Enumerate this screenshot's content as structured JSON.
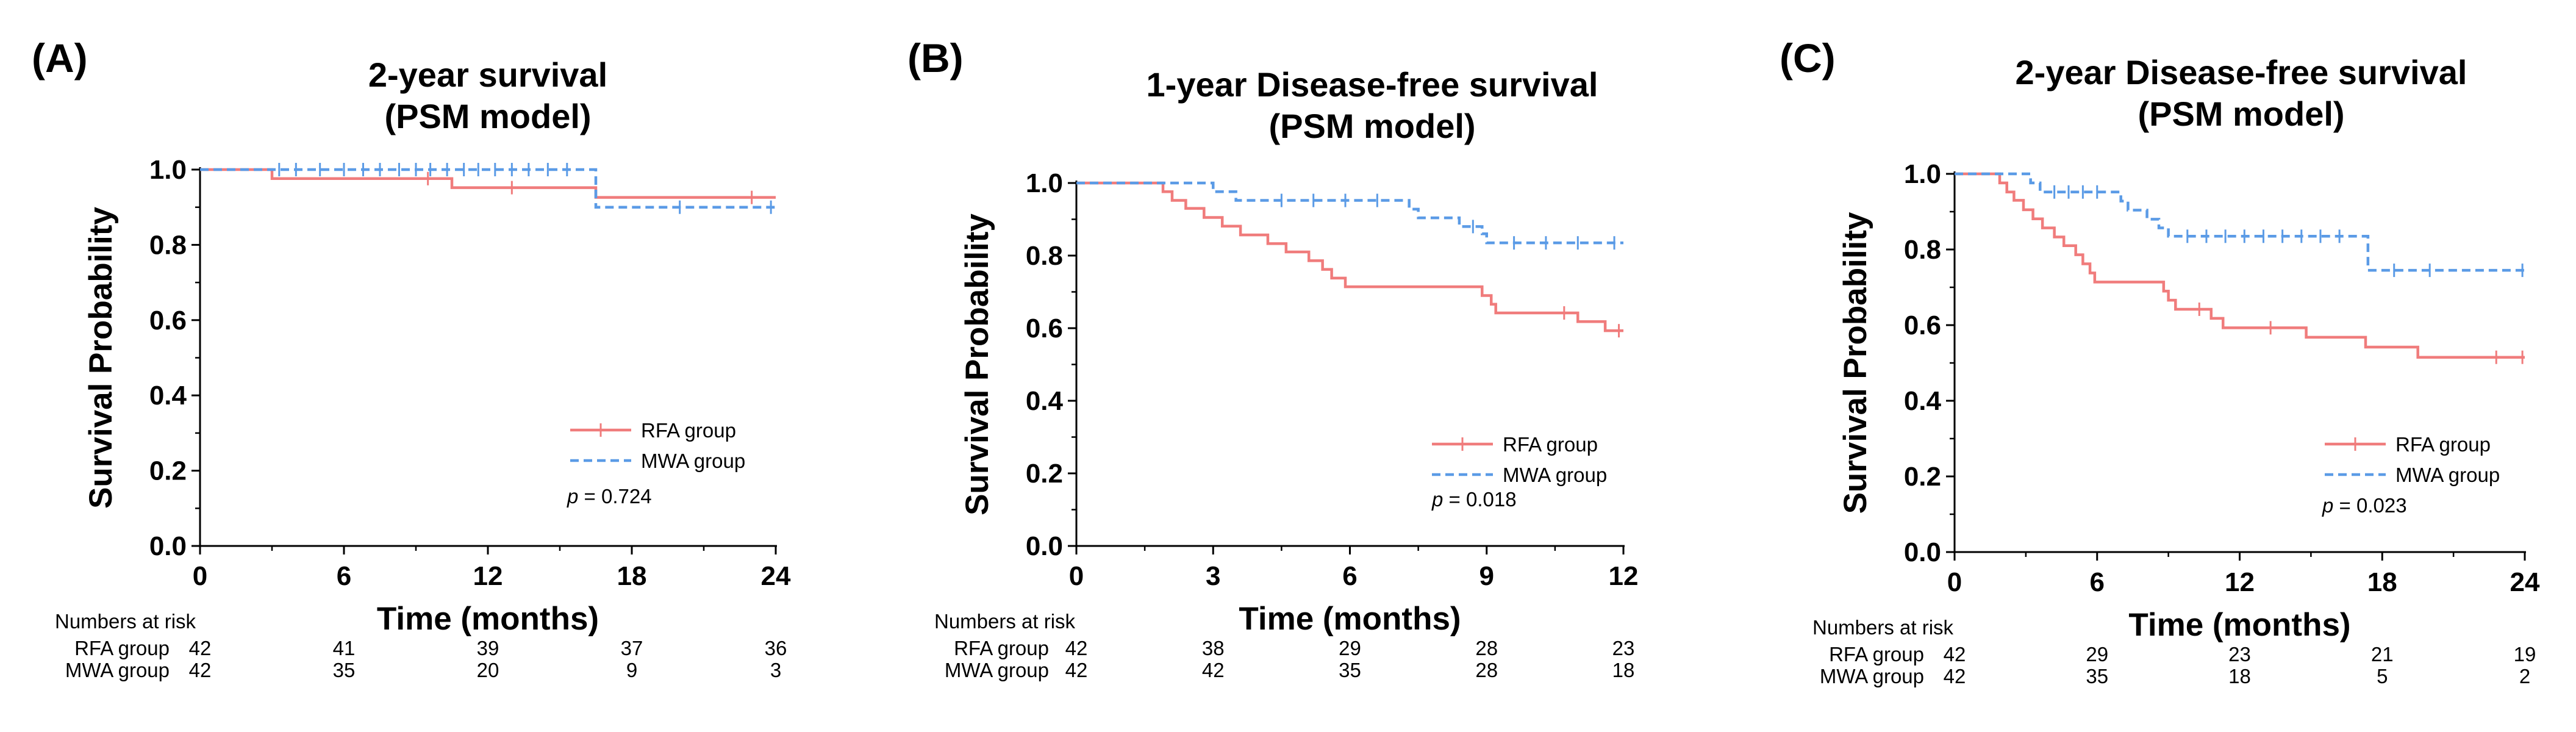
{
  "colors": {
    "rfa": "#F07C7C",
    "mwa": "#5B9BE6"
  },
  "chart_data": [
    {
      "type": "line",
      "panel_label": "(A)",
      "title": [
        "2-year survival",
        "(PSM model)"
      ],
      "xlabel": "Time (months)",
      "ylabel": "Survival Probability",
      "xlim": [
        0,
        24
      ],
      "ylim": [
        0,
        1.0
      ],
      "xticks": [
        0,
        6,
        12,
        18,
        24
      ],
      "xtick_labels": [
        "0",
        "6",
        "12",
        "18",
        "24"
      ],
      "yticks": [
        0,
        0.2,
        0.4,
        0.6,
        0.8,
        1.0
      ],
      "ytick_labels": [
        "0.0",
        "0.2",
        "0.4",
        "0.6",
        "0.8",
        "1.0"
      ],
      "series": [
        {
          "name": "RFA group",
          "style": "solid",
          "steps": [
            [
              0,
              1.0
            ],
            [
              3.0,
              0.976
            ],
            [
              10.5,
              0.952
            ],
            [
              16.5,
              0.926
            ],
            [
              24,
              0.926
            ]
          ],
          "censor": [
            [
              9.5,
              0.976
            ],
            [
              13,
              0.952
            ],
            [
              23,
              0.926
            ]
          ]
        },
        {
          "name": "MWA group",
          "style": "dashed",
          "steps": [
            [
              0,
              1.0
            ],
            [
              3.0,
              1.0
            ],
            [
              16.5,
              0.9
            ],
            [
              24,
              0.9
            ]
          ],
          "censor": [
            [
              3.3,
              1.0
            ],
            [
              4,
              1.0
            ],
            [
              5,
              1.0
            ],
            [
              6,
              1.0
            ],
            [
              6.8,
              1.0
            ],
            [
              7.5,
              1.0
            ],
            [
              8.3,
              1.0
            ],
            [
              9,
              1.0
            ],
            [
              9.6,
              1.0
            ],
            [
              10.3,
              1.0
            ],
            [
              11,
              1.0
            ],
            [
              11.6,
              1.0
            ],
            [
              12.3,
              1.0
            ],
            [
              13,
              1.0
            ],
            [
              13.7,
              1.0
            ],
            [
              14.5,
              1.0
            ],
            [
              15.3,
              1.0
            ],
            [
              20,
              0.9
            ],
            [
              23.8,
              0.9
            ]
          ]
        }
      ],
      "p_label": "p",
      "p_text": " = 0.724",
      "risk_title": "Numbers at risk",
      "risk_rows": [
        {
          "label": "RFA group",
          "values": [
            "42",
            "41",
            "39",
            "37",
            "36"
          ]
        },
        {
          "label": "MWA group",
          "values": [
            "42",
            "35",
            "20",
            "9",
            "3"
          ]
        }
      ]
    },
    {
      "type": "line",
      "panel_label": "(B)",
      "title": [
        "1-year Disease-free survival",
        "(PSM model)"
      ],
      "xlabel": "Time (months)",
      "ylabel": "Survival Probability",
      "xlim": [
        0,
        12
      ],
      "ylim": [
        0,
        1.0
      ],
      "xticks": [
        0,
        3,
        6,
        9,
        12
      ],
      "xtick_labels": [
        "0",
        "3",
        "6",
        "9",
        "12"
      ],
      "yticks": [
        0,
        0.2,
        0.4,
        0.6,
        0.8,
        1.0
      ],
      "ytick_labels": [
        "0.0",
        "0.2",
        "0.4",
        "0.6",
        "0.8",
        "1.0"
      ],
      "series": [
        {
          "name": "RFA group",
          "style": "solid",
          "steps": [
            [
              0,
              1.0
            ],
            [
              1.9,
              0.976
            ],
            [
              2.1,
              0.952
            ],
            [
              2.4,
              0.93
            ],
            [
              2.8,
              0.905
            ],
            [
              3.2,
              0.881
            ],
            [
              3.6,
              0.857
            ],
            [
              4.2,
              0.833
            ],
            [
              4.6,
              0.81
            ],
            [
              5.1,
              0.786
            ],
            [
              5.4,
              0.762
            ],
            [
              5.6,
              0.738
            ],
            [
              5.9,
              0.714
            ],
            [
              8.9,
              0.69
            ],
            [
              9.1,
              0.666
            ],
            [
              9.2,
              0.642
            ],
            [
              11.0,
              0.618
            ],
            [
              11.6,
              0.593
            ],
            [
              12.0,
              0.593
            ]
          ],
          "censor": [
            [
              10.7,
              0.642
            ],
            [
              11.9,
              0.593
            ]
          ]
        },
        {
          "name": "MWA group",
          "style": "dashed",
          "steps": [
            [
              0,
              1.0
            ],
            [
              3.0,
              0.976
            ],
            [
              3.5,
              0.952
            ],
            [
              7.3,
              0.928
            ],
            [
              7.5,
              0.904
            ],
            [
              8.4,
              0.88
            ],
            [
              8.9,
              0.86
            ],
            [
              9.0,
              0.835
            ],
            [
              12.0,
              0.835
            ]
          ],
          "censor": [
            [
              4.5,
              0.952
            ],
            [
              5.2,
              0.952
            ],
            [
              5.9,
              0.952
            ],
            [
              6.6,
              0.952
            ],
            [
              8.7,
              0.88
            ],
            [
              9.6,
              0.835
            ],
            [
              10.3,
              0.835
            ],
            [
              11.0,
              0.835
            ],
            [
              11.8,
              0.835
            ]
          ]
        }
      ],
      "p_label": "p",
      "p_text": " = 0.018",
      "risk_title": "Numbers at risk",
      "risk_rows": [
        {
          "label": "RFA group",
          "values": [
            "42",
            "38",
            "29",
            "28",
            "23"
          ]
        },
        {
          "label": "MWA group",
          "values": [
            "42",
            "42",
            "35",
            "28",
            "18"
          ]
        }
      ]
    },
    {
      "type": "line",
      "panel_label": "(C)",
      "title": [
        "2-year Disease-free survival",
        "(PSM model)"
      ],
      "xlabel": "Time (months)",
      "ylabel": "Survival Probability",
      "xlim": [
        0,
        24
      ],
      "ylim": [
        0,
        1.0
      ],
      "xticks": [
        0,
        6,
        12,
        18,
        24
      ],
      "xtick_labels": [
        "0",
        "6",
        "12",
        "18",
        "24"
      ],
      "yticks": [
        0,
        0.2,
        0.4,
        0.6,
        0.8,
        1.0
      ],
      "ytick_labels": [
        "0.0",
        "0.2",
        "0.4",
        "0.6",
        "0.8",
        "1.0"
      ],
      "series": [
        {
          "name": "RFA group",
          "style": "solid",
          "steps": [
            [
              0,
              1.0
            ],
            [
              1.9,
              0.976
            ],
            [
              2.2,
              0.952
            ],
            [
              2.5,
              0.93
            ],
            [
              2.9,
              0.905
            ],
            [
              3.3,
              0.881
            ],
            [
              3.7,
              0.857
            ],
            [
              4.2,
              0.833
            ],
            [
              4.6,
              0.81
            ],
            [
              5.1,
              0.786
            ],
            [
              5.4,
              0.762
            ],
            [
              5.7,
              0.738
            ],
            [
              5.9,
              0.714
            ],
            [
              8.8,
              0.69
            ],
            [
              9.0,
              0.666
            ],
            [
              9.3,
              0.642
            ],
            [
              10.8,
              0.618
            ],
            [
              11.3,
              0.593
            ],
            [
              12.2,
              0.593
            ],
            [
              14.8,
              0.568
            ],
            [
              17.3,
              0.542
            ],
            [
              19.5,
              0.515
            ],
            [
              24.0,
              0.515
            ]
          ],
          "censor": [
            [
              10.3,
              0.642
            ],
            [
              13.3,
              0.593
            ],
            [
              22.8,
              0.515
            ],
            [
              23.9,
              0.515
            ]
          ]
        },
        {
          "name": "MWA group",
          "style": "dashed",
          "steps": [
            [
              0,
              1.0
            ],
            [
              3.2,
              0.976
            ],
            [
              3.6,
              0.952
            ],
            [
              7.0,
              0.928
            ],
            [
              7.3,
              0.904
            ],
            [
              8.1,
              0.88
            ],
            [
              8.6,
              0.857
            ],
            [
              9.0,
              0.835
            ],
            [
              17.4,
              0.745
            ],
            [
              24.0,
              0.745
            ]
          ],
          "censor": [
            [
              4.2,
              0.952
            ],
            [
              4.8,
              0.952
            ],
            [
              5.4,
              0.952
            ],
            [
              6.0,
              0.952
            ],
            [
              9.8,
              0.835
            ],
            [
              10.6,
              0.835
            ],
            [
              11.4,
              0.835
            ],
            [
              12.2,
              0.835
            ],
            [
              13.0,
              0.835
            ],
            [
              13.8,
              0.835
            ],
            [
              14.6,
              0.835
            ],
            [
              15.4,
              0.835
            ],
            [
              16.2,
              0.835
            ],
            [
              18.5,
              0.745
            ],
            [
              20.0,
              0.745
            ],
            [
              23.9,
              0.745
            ]
          ]
        }
      ],
      "p_label": "p",
      "p_text": " = 0.023",
      "risk_title": "Numbers at risk",
      "risk_rows": [
        {
          "label": "RFA group",
          "values": [
            "42",
            "29",
            "23",
            "21",
            "19"
          ]
        },
        {
          "label": "MWA group",
          "values": [
            "42",
            "35",
            "18",
            "5",
            "2"
          ]
        }
      ]
    }
  ]
}
